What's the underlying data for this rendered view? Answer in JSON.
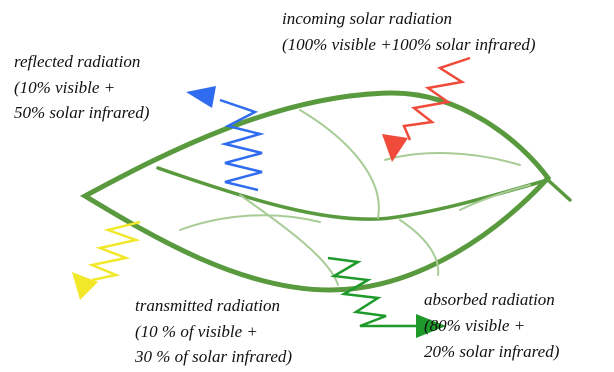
{
  "labels": {
    "incoming": [
      "incoming solar radiation",
      "(100% visible +100%  solar infrared)"
    ],
    "reflected": [
      "reflected radiation",
      "(10% visible +",
      "50% solar infrared)"
    ],
    "transmitted": [
      "transmitted radiation",
      "(10 % of visible +",
      "30 % of solar infrared)"
    ],
    "absorbed": [
      "absorbed radiation",
      "(80% visible +",
      "20% solar infrared)"
    ]
  }
}
